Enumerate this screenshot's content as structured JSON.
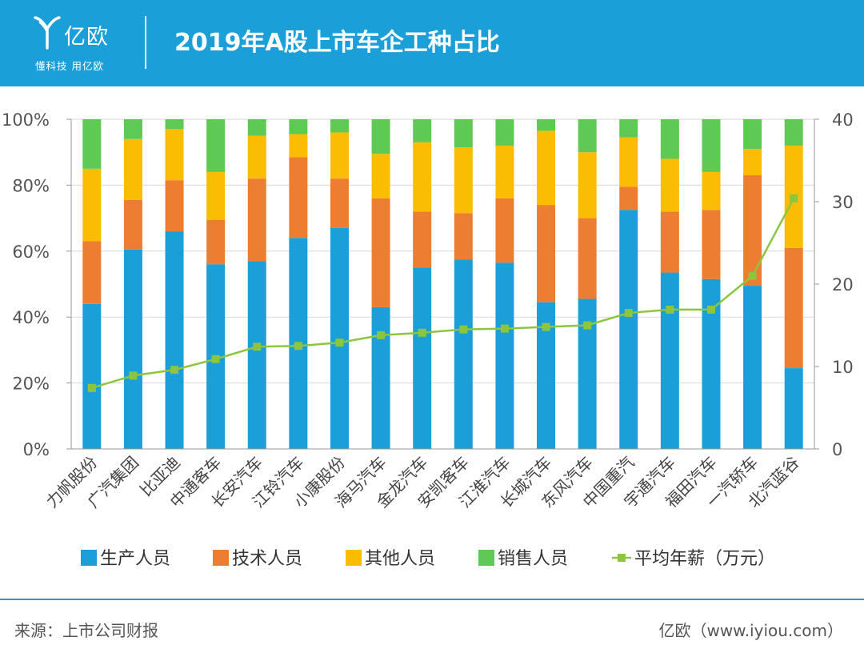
{
  "header": {
    "logo_name": "亿欧",
    "logo_slogan": "懂科技 用亿欧",
    "title": "2019年A股上市车企工种占比"
  },
  "footer": {
    "source": "来源：上市公司财报",
    "brand": "亿欧（www.iyiou.com）"
  },
  "colors": {
    "header_bg": "#1a9fd8",
    "production": "#1a9fd8",
    "technical": "#ed7d31",
    "other": "#fbbc04",
    "sales": "#5ec953",
    "salary": "#8cc63f"
  },
  "chart_data": {
    "type": "bar",
    "stacked": true,
    "categories": [
      "力帆股份",
      "广汽集团",
      "比亚迪",
      "中通客车",
      "长安汽车",
      "江铃汽车",
      "小康股份",
      "海马汽车",
      "金龙汽车",
      "安凯客车",
      "江淮汽车",
      "长城汽车",
      "东风汽车",
      "中国重汽",
      "宇通汽车",
      "福田汽车",
      "一汽轿车",
      "北汽蓝谷"
    ],
    "left_axis": {
      "ticks": [
        "0%",
        "20%",
        "40%",
        "60%",
        "80%",
        "100%"
      ],
      "range": [
        0,
        100
      ]
    },
    "right_axis": {
      "ticks": [
        "0",
        "10",
        "20",
        "30",
        "40"
      ],
      "range": [
        0,
        40
      ]
    },
    "series": [
      {
        "name": "生产人员",
        "type": "bar",
        "color": "#1a9fd8",
        "values": [
          44,
          60.5,
          66,
          56,
          57,
          64,
          67,
          43,
          55,
          57.5,
          56.5,
          44.5,
          45.5,
          72.5,
          53.5,
          51.5,
          49.5,
          24.5
        ]
      },
      {
        "name": "技术人员",
        "type": "bar",
        "color": "#ed7d31",
        "values": [
          19,
          15,
          15.5,
          13.5,
          25,
          24.5,
          15,
          33,
          17,
          14,
          19.5,
          29.5,
          24.5,
          7,
          18.5,
          21,
          33.5,
          36.5
        ]
      },
      {
        "name": "其他人员",
        "type": "bar",
        "color": "#fbbc04",
        "values": [
          22,
          18.5,
          15.5,
          14.5,
          13,
          7,
          14,
          13.5,
          21,
          20,
          16,
          22.5,
          20,
          15,
          16,
          11.5,
          8,
          31
        ]
      },
      {
        "name": "销售人员",
        "type": "bar",
        "color": "#5ec953",
        "values": [
          15,
          6,
          3,
          16,
          5,
          4.5,
          4,
          10.5,
          7,
          8.5,
          8,
          3.5,
          10,
          5.5,
          12,
          16,
          9,
          8
        ]
      },
      {
        "name": "平均年薪（万元）",
        "type": "line",
        "axis": "right",
        "color": "#8cc63f",
        "values": [
          7.4,
          8.9,
          9.6,
          10.9,
          12.4,
          12.5,
          12.9,
          13.8,
          14.1,
          14.5,
          14.6,
          14.8,
          15.0,
          16.5,
          16.9,
          16.9,
          21.0,
          30.4
        ]
      }
    ]
  }
}
